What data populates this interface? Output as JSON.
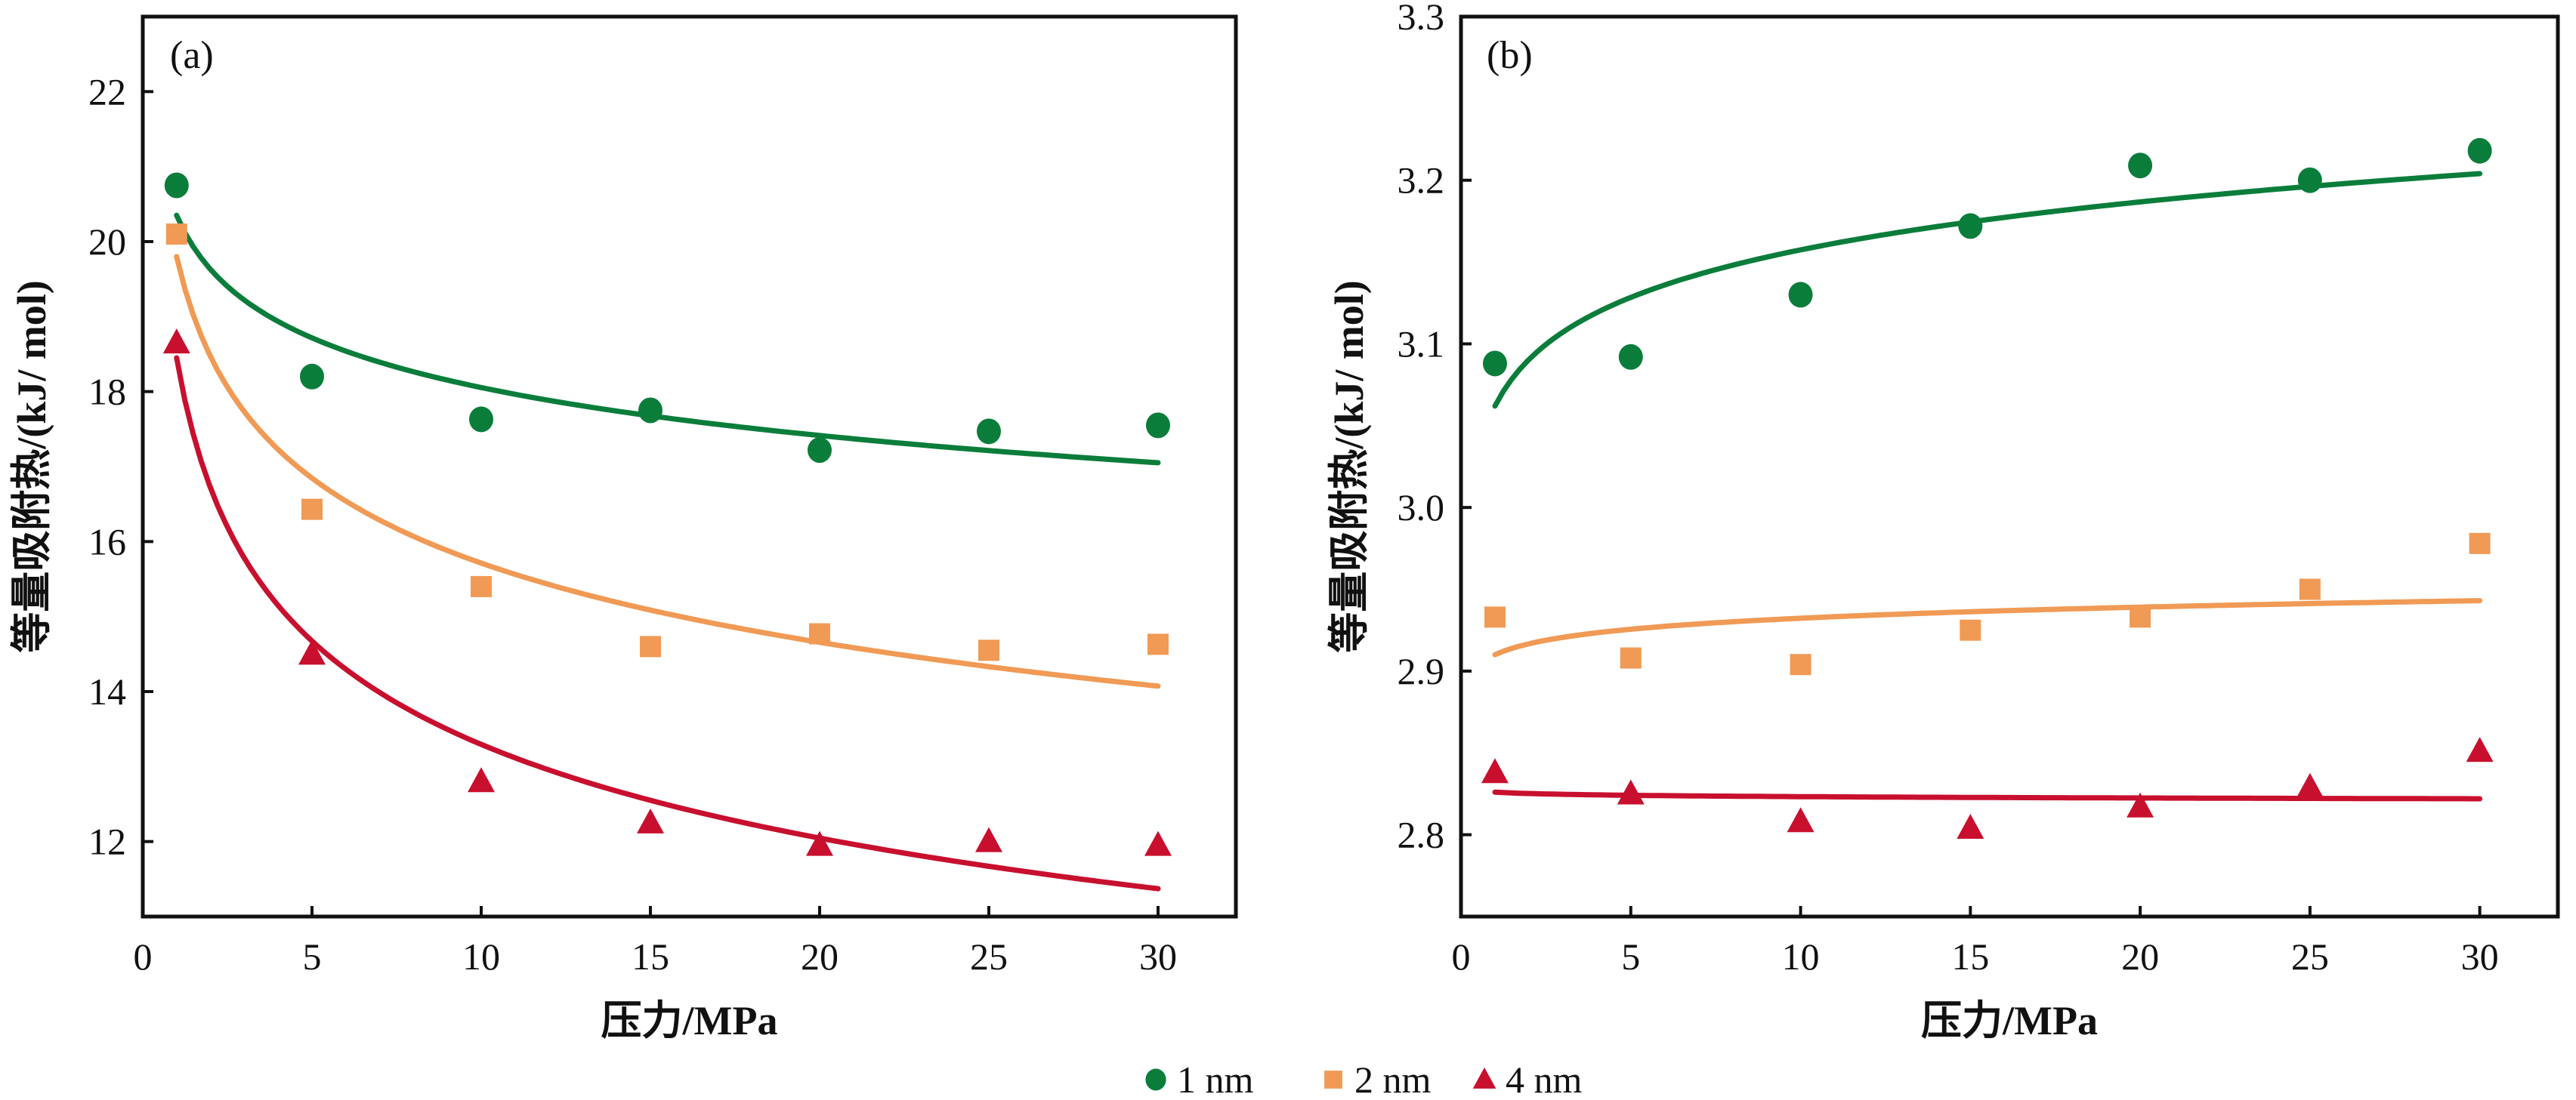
{
  "colors": {
    "1 nm": "#0b7d3b",
    "2 nm": "#f09a55",
    "4 nm": "#c8102e"
  },
  "legend": [
    "1 nm",
    "2 nm",
    "4 nm"
  ],
  "chart_data": [
    {
      "type": "scatter",
      "panel_label": "(a)",
      "xlabel": "压力/MPa",
      "ylabel": "等量吸附热/(kJ/ mol)",
      "xlim": [
        0,
        32.3
      ],
      "ylim": [
        11,
        23
      ],
      "xticks": [
        0,
        5,
        10,
        15,
        20,
        25,
        30
      ],
      "yticks": [
        12,
        14,
        16,
        18,
        20,
        22
      ],
      "ytick_decimals": 0,
      "x": [
        1,
        5,
        10,
        15,
        20,
        25,
        30
      ],
      "series": [
        {
          "name": "1 nm",
          "marker": "circle",
          "values": [
            20.75,
            18.2,
            17.63,
            17.75,
            17.22,
            17.47,
            17.55
          ],
          "fit": {
            "form": "a*x^b",
            "a": 20.35,
            "b": -0.052
          }
        },
        {
          "name": "2 nm",
          "marker": "square",
          "values": [
            20.1,
            16.43,
            15.4,
            14.6,
            14.77,
            14.55,
            14.63
          ],
          "fit": {
            "form": "a*x^b",
            "a": 19.8,
            "b": -0.1004
          }
        },
        {
          "name": "4 nm",
          "marker": "triangle",
          "values": [
            18.65,
            14.5,
            12.8,
            12.25,
            11.95,
            12.0,
            11.95
          ],
          "fit": {
            "form": "a*x^b",
            "a": 18.45,
            "b": -0.1423
          }
        }
      ]
    },
    {
      "type": "scatter",
      "panel_label": "(b)",
      "xlabel": "压力/MPa",
      "ylabel": "等量吸附热/(kJ/ mol)",
      "xlim": [
        0,
        32.3
      ],
      "ylim": [
        2.75,
        3.3
      ],
      "xticks": [
        0,
        5,
        10,
        15,
        20,
        25,
        30
      ],
      "yticks": [
        2.8,
        2.9,
        3.0,
        3.1,
        3.2,
        3.3
      ],
      "ytick_decimals": 1,
      "x": [
        1,
        5,
        10,
        15,
        20,
        25,
        30
      ],
      "series": [
        {
          "name": "1 nm",
          "marker": "circle",
          "values": [
            3.088,
            3.092,
            3.13,
            3.172,
            3.209,
            3.2,
            3.218
          ],
          "fit": {
            "form": "a*x^b",
            "a": 3.062,
            "b": 0.01333
          }
        },
        {
          "name": "2 nm",
          "marker": "square",
          "values": [
            2.933,
            2.908,
            2.904,
            2.925,
            2.933,
            2.95,
            2.978
          ],
          "fit": {
            "form": "a*x^b",
            "a": 2.91,
            "b": 0.00332
          }
        },
        {
          "name": "4 nm",
          "marker": "triangle",
          "values": [
            2.838,
            2.825,
            2.808,
            2.804,
            2.817,
            2.829,
            2.851
          ],
          "fit": {
            "form": "a*x^b",
            "a": 2.826,
            "b": -0.000418
          }
        }
      ]
    }
  ]
}
